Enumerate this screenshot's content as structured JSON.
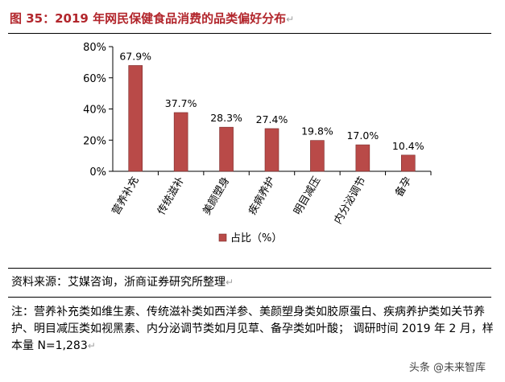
{
  "title": "图 35：2019 年网民保健食品消费的品类偏好分布",
  "paragraph_mark": "↵",
  "source": "资料来源：艾媒咨询，浙商证券研究所整理",
  "note": "注：营养补充类如维生素、传统滋补类如西洋参、美颜塑身类如胶原蛋白、疾病养护类如关节养护、明目减压类如视黑素、内分泌调节类如月见草、备孕类如叶酸； 调研时间 2019 年 2 月，样本量 N=1,283",
  "watermark": "头条 @未来智库",
  "colors": {
    "bar": "#b94a48",
    "bar_edge": "#7a2a29",
    "title": "#b2262c"
  },
  "chart_data": {
    "type": "bar",
    "categories": [
      "营养补充",
      "传统滋补",
      "美颜塑身",
      "疾病养护",
      "明目减压",
      "内分泌调节",
      "备孕"
    ],
    "series": [
      {
        "name": "占比（%）",
        "values": [
          67.9,
          37.7,
          28.3,
          27.4,
          19.8,
          17.0,
          10.4
        ]
      }
    ],
    "data_labels": [
      "67.9%",
      "37.7%",
      "28.3%",
      "27.4%",
      "19.8%",
      "17.0%",
      "10.4%"
    ],
    "y_ticks": [
      0,
      20,
      40,
      60,
      80
    ],
    "y_tick_labels": [
      "0%",
      "20%",
      "40%",
      "60%",
      "80%"
    ],
    "ylim": [
      0,
      80
    ],
    "grid": false,
    "legend": "bottom-center"
  }
}
